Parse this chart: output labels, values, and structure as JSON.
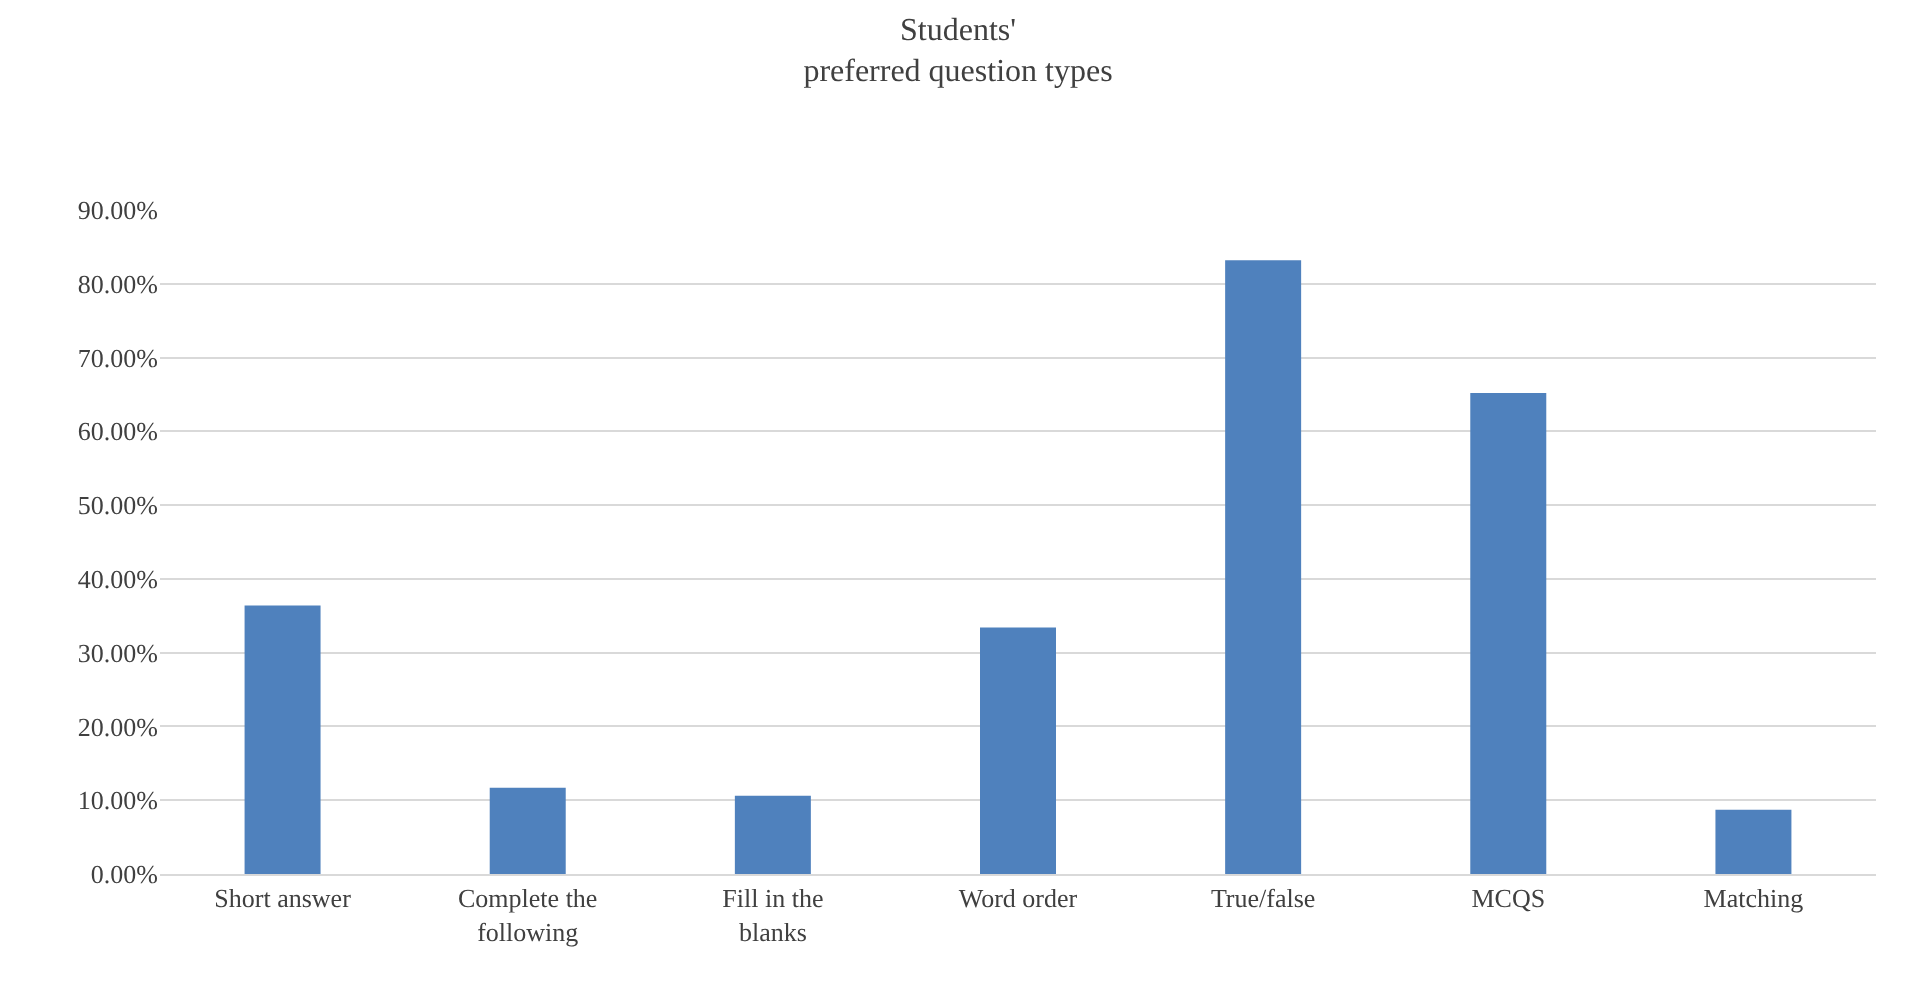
{
  "chart_data": {
    "type": "bar",
    "title": "Students'\npreferred question types",
    "categories": [
      "Short answer",
      "Complete the following",
      "Fill in the blanks",
      "Word order",
      "True/false",
      "MCQS",
      "Matching"
    ],
    "values": [
      36.4,
      11.7,
      10.6,
      33.4,
      83.2,
      65.2,
      8.7
    ],
    "color": "#4f81bd",
    "ylim": [
      0,
      90
    ],
    "yticks": [
      {
        "value": 0,
        "label": "0.00%"
      },
      {
        "value": 10,
        "label": "10.00%"
      },
      {
        "value": 20,
        "label": "20.00%"
      },
      {
        "value": 30,
        "label": "30.00%"
      },
      {
        "value": 40,
        "label": "40.00%"
      },
      {
        "value": 50,
        "label": "50.00%"
      },
      {
        "value": 60,
        "label": "60.00%"
      },
      {
        "value": 70,
        "label": "70.00%"
      },
      {
        "value": 80,
        "label": "80.00%"
      },
      {
        "value": 90,
        "label": "90.00%"
      }
    ],
    "grid": "y"
  }
}
